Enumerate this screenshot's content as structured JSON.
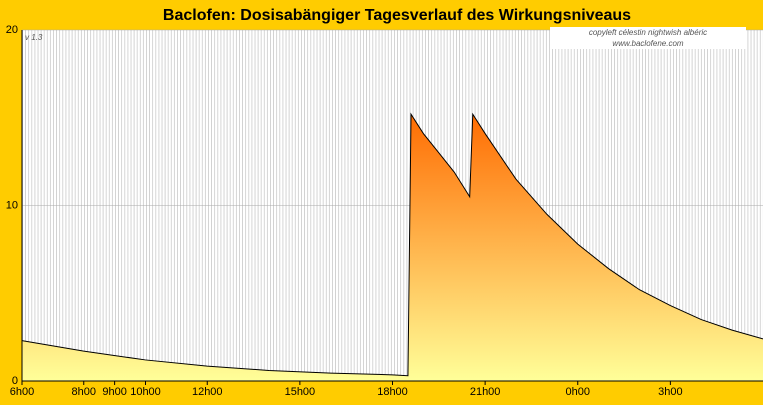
{
  "chart_data": {
    "type": "area",
    "title": "Baclofen: Dosisabängiger Tagesverlauf des Wirkungsniveaus",
    "version": "v 1.3",
    "credits": [
      "copyleft  célestin  nightwish  albéric",
      "www.baclofene.com"
    ],
    "x": [
      0,
      2,
      4,
      6,
      8,
      10,
      12,
      12.5,
      12.6,
      13,
      13.5,
      14,
      14.5,
      14.6,
      15,
      16,
      17,
      18,
      19,
      20,
      21,
      22,
      23,
      24
    ],
    "values": [
      2.3,
      1.7,
      1.2,
      0.85,
      0.6,
      0.45,
      0.35,
      0.3,
      15.2,
      14.1,
      13.0,
      11.9,
      10.5,
      15.2,
      14.1,
      11.5,
      9.5,
      7.8,
      6.4,
      5.2,
      4.3,
      3.5,
      2.9,
      2.4
    ],
    "color": "#000000",
    "fill_colors": [
      "#ff6a00",
      "#ffff99"
    ],
    "background": "#ffcc00",
    "xlim": [
      0,
      24
    ],
    "xticks": [
      {
        "value": 0,
        "label": "6h00"
      },
      {
        "value": 2,
        "label": "8h00"
      },
      {
        "value": 3,
        "label": "9h00"
      },
      {
        "value": 4,
        "label": "10h00"
      },
      {
        "value": 6,
        "label": "12h00"
      },
      {
        "value": 9,
        "label": "15h00"
      },
      {
        "value": 12,
        "label": "18h00"
      },
      {
        "value": 15,
        "label": "21h00"
      },
      {
        "value": 18,
        "label": "0h00"
      },
      {
        "value": 21,
        "label": "3h00"
      }
    ],
    "ylim": [
      0,
      20
    ],
    "yticks": [
      0,
      10,
      20
    ],
    "grid": true
  }
}
